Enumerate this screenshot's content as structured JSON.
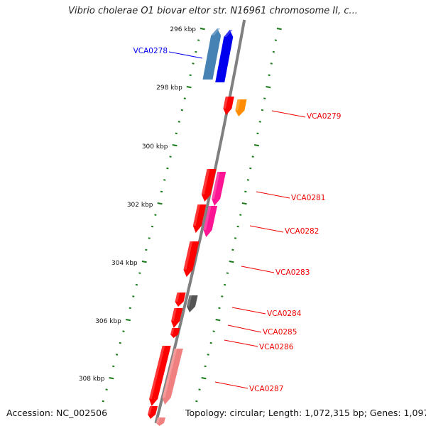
{
  "title": "Vibrio cholerae O1 biovar eltor str. N16961 chromosome II, c...",
  "footer": {
    "accession": "Accession: NC_002506",
    "topology": "Topology: circular; Length: 1,072,315 bp; Genes: 1,097"
  },
  "kbp_labels": [
    "296 kbp",
    "298 kbp",
    "300 kbp",
    "302 kbp",
    "304 kbp",
    "306 kbp",
    "308 kbp"
  ],
  "colors": {
    "backbone": "#808080",
    "tick": "#1a7a1a",
    "red": "#ff0000",
    "blue": "#0000ee",
    "steel": "#4682b4",
    "orange": "#ff8c00",
    "magenta": "#ff1493",
    "gray": "#555555",
    "pink": "#f08080"
  },
  "gene_labels": [
    {
      "name": "VCA0278",
      "color": "#0000ee"
    },
    {
      "name": "VCA0279",
      "color": "#ee0000"
    },
    {
      "name": "VCA0281",
      "color": "#ee0000"
    },
    {
      "name": "VCA0282",
      "color": "#ee0000"
    },
    {
      "name": "VCA0283",
      "color": "#ee0000"
    },
    {
      "name": "VCA0284",
      "color": "#ee0000"
    },
    {
      "name": "VCA0285",
      "color": "#ee0000"
    },
    {
      "name": "VCA0286",
      "color": "#ee0000"
    },
    {
      "name": "VCA0287",
      "color": "#ee0000"
    }
  ]
}
